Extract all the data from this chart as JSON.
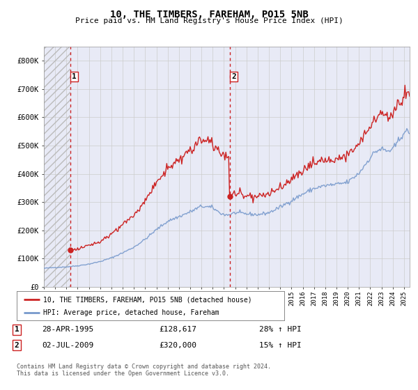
{
  "title": "10, THE TIMBERS, FAREHAM, PO15 5NB",
  "subtitle": "Price paid vs. HM Land Registry's House Price Index (HPI)",
  "ylim": [
    0,
    850000
  ],
  "yticks": [
    0,
    100000,
    200000,
    300000,
    400000,
    500000,
    600000,
    700000,
    800000
  ],
  "ytick_labels": [
    "£0",
    "£100K",
    "£200K",
    "£300K",
    "£400K",
    "£500K",
    "£600K",
    "£700K",
    "£800K"
  ],
  "hpi_color": "#7799cc",
  "price_color": "#cc2222",
  "vline_color": "#cc2222",
  "grid_color": "#cccccc",
  "bg_color": "#ffffff",
  "plot_bg_color": "#e8eaf6",
  "transaction1_x": 1995.33,
  "transaction1_y": 128617,
  "transaction1_label": "28-APR-1995",
  "transaction1_price": "£128,617",
  "transaction1_hpi": "28% ↑ HPI",
  "transaction2_x": 2009.5,
  "transaction2_y": 320000,
  "transaction2_label": "02-JUL-2009",
  "transaction2_price": "£320,000",
  "transaction2_hpi": "15% ↑ HPI",
  "xmin": 1993.0,
  "xmax": 2025.5,
  "footer": "Contains HM Land Registry data © Crown copyright and database right 2024.\nThis data is licensed under the Open Government Licence v3.0."
}
